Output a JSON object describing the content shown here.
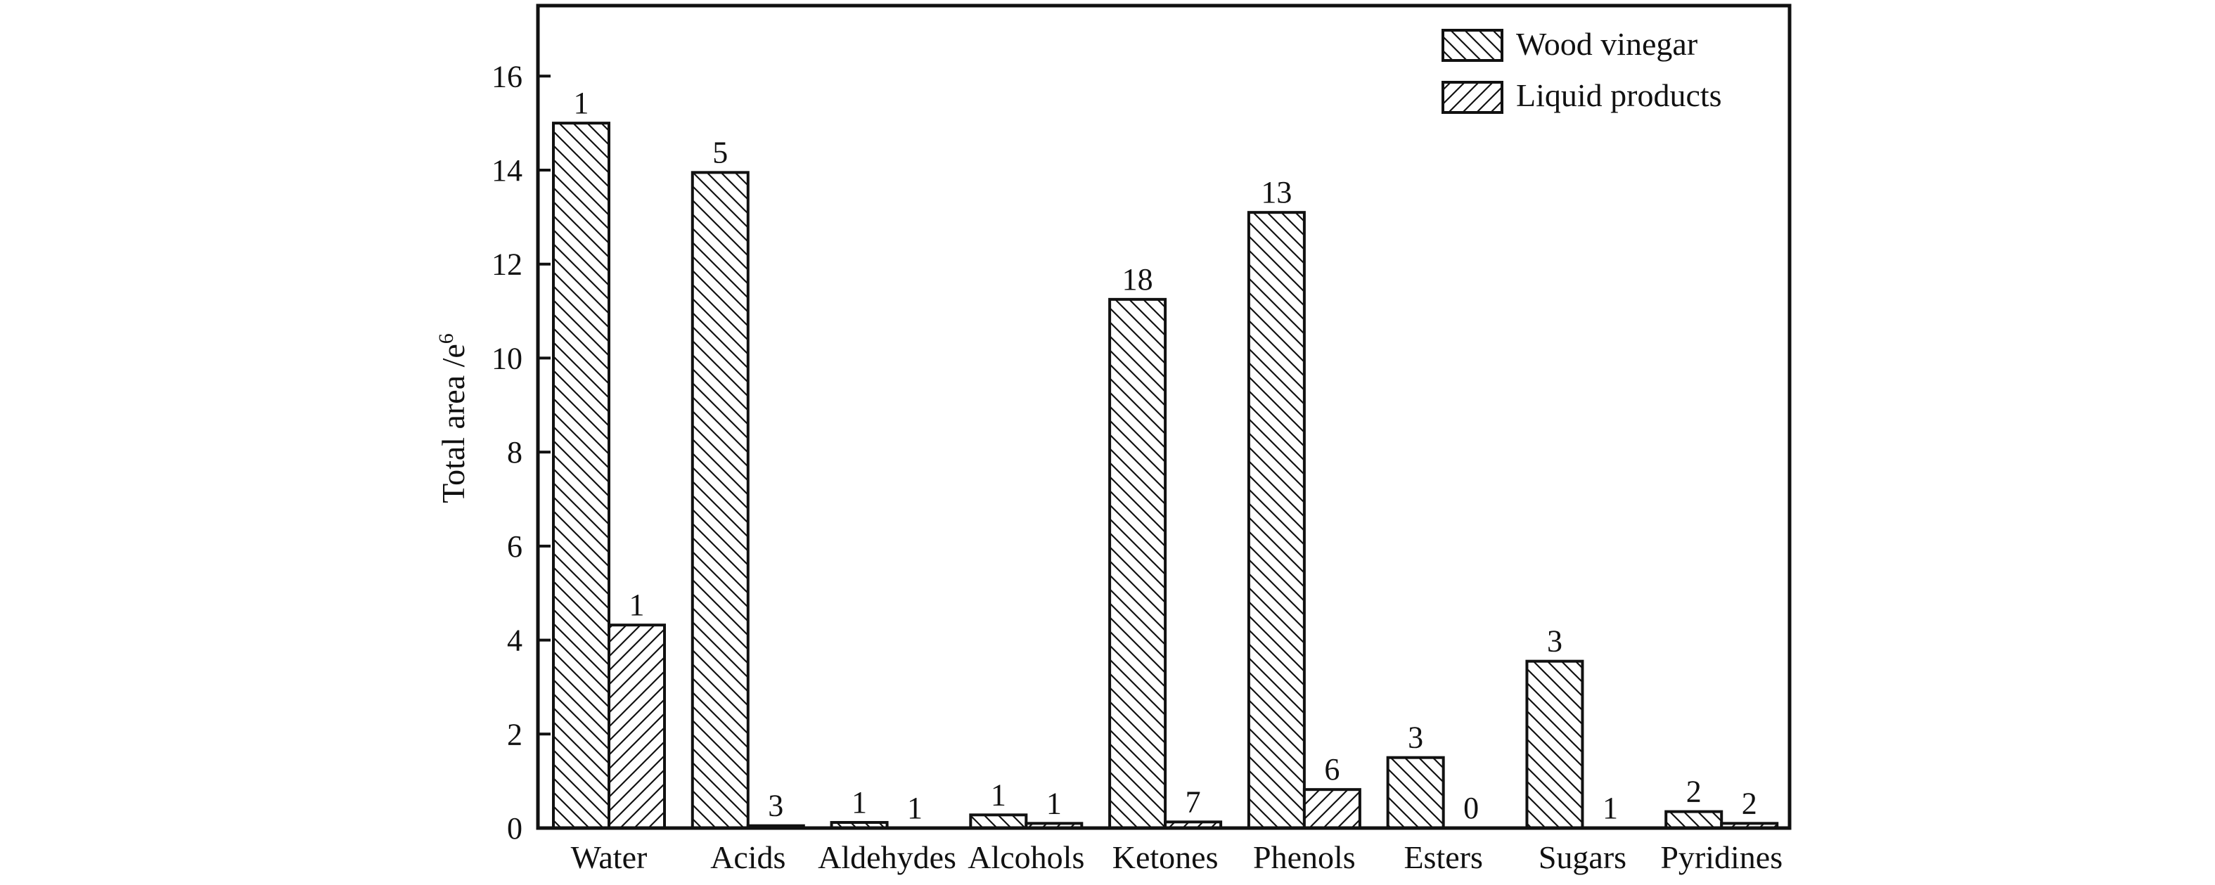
{
  "chart_data": {
    "type": "bar",
    "xlabel": "",
    "ylabel": "Total area /e",
    "ylabel_sup": "6",
    "ylim": [
      0,
      17.5
    ],
    "yticks": [
      0,
      2,
      4,
      6,
      8,
      10,
      12,
      14,
      16
    ],
    "categories": [
      "Water",
      "Acids",
      "Aldehydes",
      "Alcohols",
      "Ketones",
      "Phenols",
      "Esters",
      "Sugars",
      "Pyridines"
    ],
    "series": [
      {
        "name": "Wood vinegar",
        "pattern": "backslash-hatch",
        "values": [
          15.0,
          13.95,
          0.12,
          0.28,
          11.25,
          13.1,
          1.5,
          3.55,
          0.35
        ],
        "labels": [
          "1",
          "5",
          "1",
          "1",
          "18",
          "13",
          "3",
          "3",
          "2"
        ]
      },
      {
        "name": "Liquid products",
        "pattern": "slash-hatch",
        "values": [
          4.32,
          0.05,
          0.0,
          0.1,
          0.13,
          0.82,
          0.0,
          0.0,
          0.1
        ],
        "labels": [
          "1",
          "3",
          "1",
          "1",
          "7",
          "6",
          "0",
          "1",
          "2"
        ]
      }
    ],
    "legend": {
      "placement": "top-right"
    },
    "grid": false,
    "colors": {
      "ink": "#111111",
      "fill": "#ffffff"
    }
  }
}
